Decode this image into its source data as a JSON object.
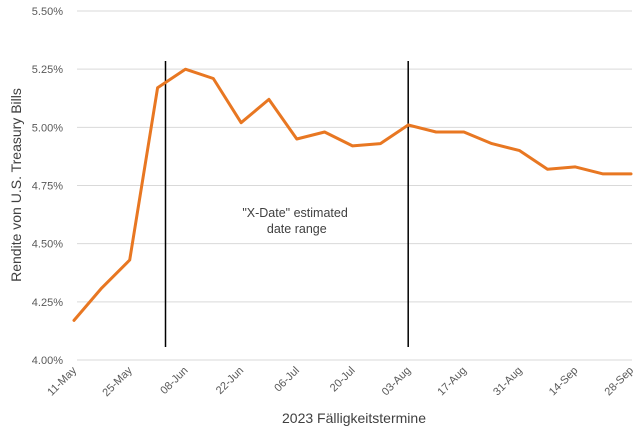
{
  "chart_data": {
    "type": "line",
    "title": "",
    "xlabel": "2023 Fälligkeitstermine",
    "ylabel": "Rendite von U.S. Treasury Bills",
    "ylim": [
      4.0,
      5.5
    ],
    "yticks": [
      "4.00%",
      "4.25%",
      "4.50%",
      "4.75%",
      "5.00%",
      "5.25%",
      "5.50%"
    ],
    "yticks_values": [
      4.0,
      4.25,
      4.5,
      4.75,
      5.0,
      5.25,
      5.5
    ],
    "xticks": [
      "11-May",
      "25-May",
      "08-Jun",
      "22-Jun",
      "06-Jul",
      "20-Jul",
      "03-Aug",
      "17-Aug",
      "31-Aug",
      "14-Sep",
      "28-Sep"
    ],
    "grid": "horizontal",
    "legend": "none",
    "series": [
      {
        "color": "#E87722",
        "x": [
          "2023-05-11",
          "2023-05-18",
          "2023-05-25",
          "2023-06-01",
          "2023-06-08",
          "2023-06-15",
          "2023-06-22",
          "2023-06-29",
          "2023-07-06",
          "2023-07-13",
          "2023-07-20",
          "2023-07-27",
          "2023-08-03",
          "2023-08-10",
          "2023-08-17",
          "2023-08-24",
          "2023-08-31",
          "2023-09-07",
          "2023-09-14",
          "2023-09-21",
          "2023-09-28"
        ],
        "values": [
          4.17,
          4.31,
          4.43,
          5.17,
          5.25,
          5.21,
          5.02,
          5.12,
          4.95,
          4.98,
          4.92,
          4.93,
          5.01,
          4.98,
          4.98,
          4.93,
          4.9,
          4.82,
          4.83,
          4.8,
          4.8
        ]
      }
    ],
    "vlines": [
      {
        "x": "2023-06-03",
        "color": "#000000"
      },
      {
        "x": "2023-08-03",
        "color": "#000000"
      }
    ],
    "annotation": {
      "lines": [
        "\"X-Date\" estimated",
        "date range"
      ],
      "x": "2023-07-06",
      "y": 4.585
    }
  }
}
